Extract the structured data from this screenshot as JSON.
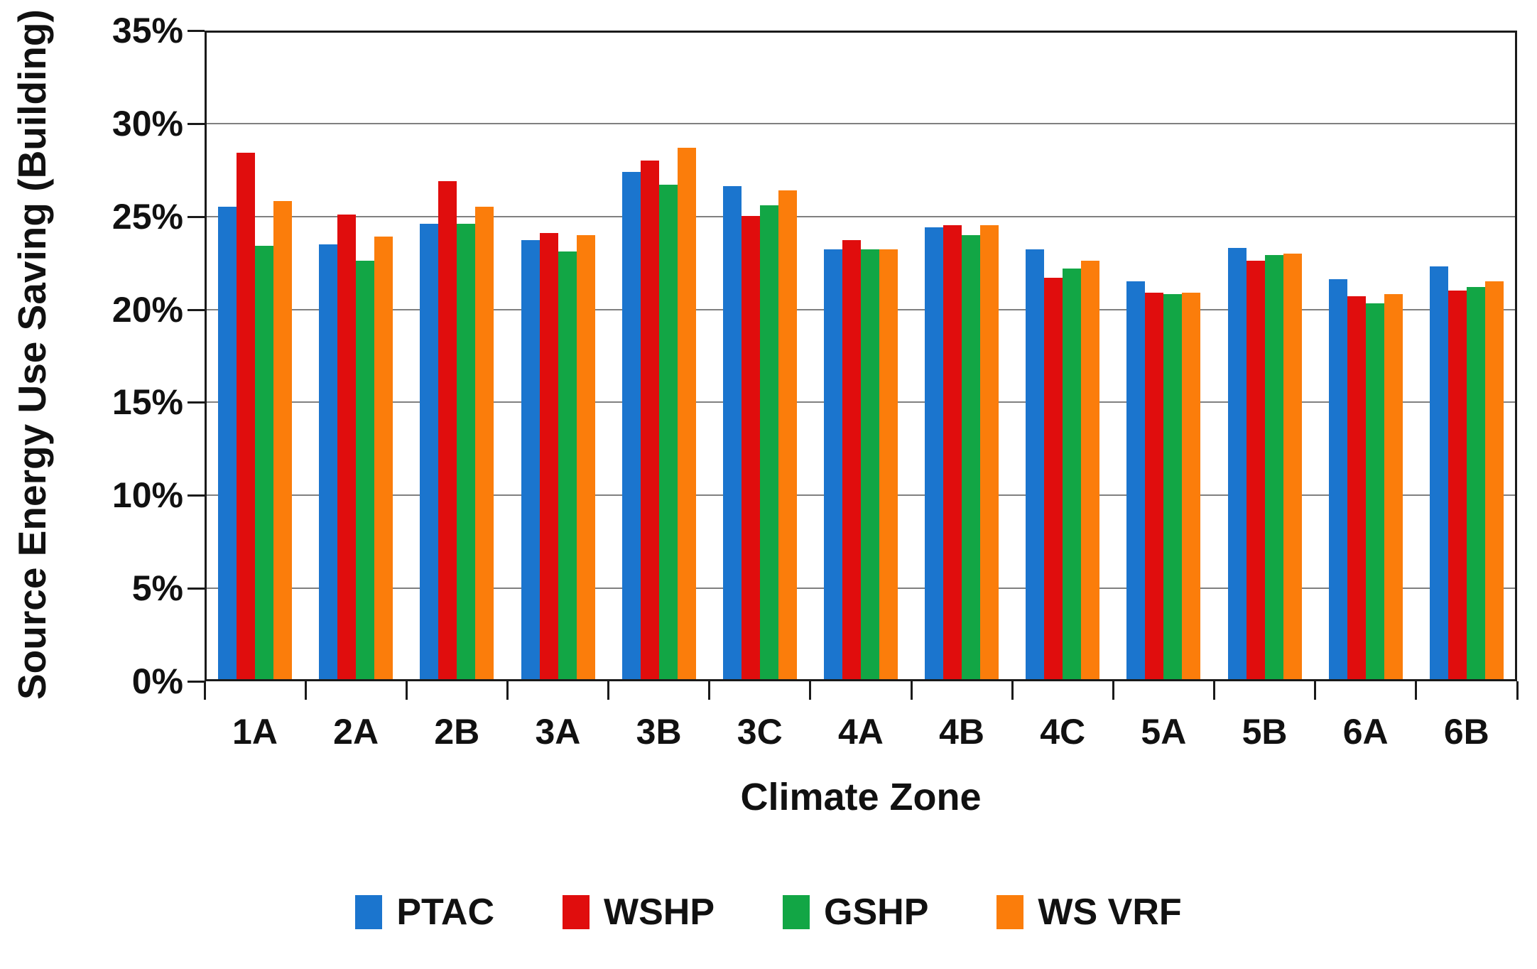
{
  "chart_data": {
    "type": "bar",
    "title": "",
    "xlabel": "Climate Zone",
    "ylabel": "Source Energy Use Saving (Building)",
    "categories": [
      "1A",
      "2A",
      "2B",
      "3A",
      "3B",
      "3C",
      "4A",
      "4B",
      "4C",
      "5A",
      "5B",
      "6A",
      "6B"
    ],
    "series": [
      {
        "name": "PTAC",
        "color": "#1B75CE",
        "values": [
          25.4,
          23.4,
          24.5,
          23.6,
          27.3,
          26.5,
          23.1,
          24.3,
          23.1,
          21.4,
          23.2,
          21.5,
          22.2
        ]
      },
      {
        "name": "WSHP",
        "color": "#E00D0D",
        "values": [
          28.3,
          25.0,
          26.8,
          24.0,
          27.9,
          24.9,
          23.6,
          24.4,
          21.6,
          20.8,
          22.5,
          20.6,
          20.9
        ]
      },
      {
        "name": "GSHP",
        "color": "#12A645",
        "values": [
          23.3,
          22.5,
          24.5,
          23.0,
          26.6,
          25.5,
          23.1,
          23.9,
          22.1,
          20.7,
          22.8,
          20.2,
          21.1
        ]
      },
      {
        "name": "WS VRF",
        "color": "#FB7D0B",
        "values": [
          25.7,
          23.8,
          25.4,
          23.9,
          28.6,
          26.3,
          23.1,
          24.4,
          22.5,
          20.8,
          22.9,
          20.7,
          21.4
        ]
      }
    ],
    "ylim": [
      0,
      35
    ],
    "ytick_step": 5,
    "yticks": [
      "0%",
      "5%",
      "10%",
      "15%",
      "20%",
      "25%",
      "30%",
      "35%"
    ],
    "grid": "horizontal",
    "legend_position": "bottom",
    "colors": {
      "grid": "#808080",
      "axis": "#1a1a1a",
      "text": "#111111",
      "background": "#ffffff"
    }
  }
}
